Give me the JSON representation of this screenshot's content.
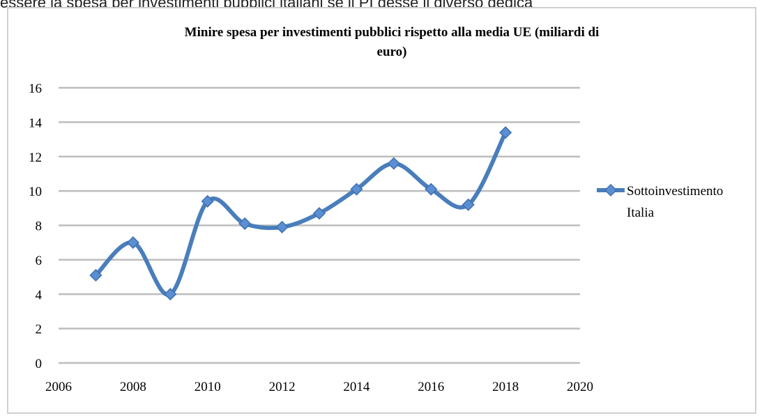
{
  "top_text": "essere la spesa per investimenti pubblici italiani se il PÌ desse il diverso dedica",
  "chart_data": {
    "type": "line",
    "title_line1": "Minire spesa per investimenti pubblici rispetto alla media UE (miliardi di",
    "title_line2": "euro)",
    "xlabel": "",
    "ylabel": "",
    "xlim": [
      2006,
      2020
    ],
    "ylim": [
      0,
      16
    ],
    "x_ticks": [
      "2006",
      "2008",
      "2010",
      "2012",
      "2014",
      "2016",
      "2018",
      "2020"
    ],
    "y_ticks": [
      "0",
      "2",
      "4",
      "6",
      "8",
      "10",
      "12",
      "14",
      "16"
    ],
    "grid": true,
    "legend_position": "right",
    "series": [
      {
        "name_line1": "Sottoinvestimento",
        "name_line2": "Italia",
        "color": "#4a7ebb",
        "x": [
          2007,
          2008,
          2009,
          2010,
          2011,
          2012,
          2013,
          2014,
          2015,
          2016,
          2017,
          2018
        ],
        "y": [
          5.1,
          7.0,
          4.0,
          9.4,
          8.1,
          7.9,
          8.7,
          10.1,
          11.6,
          10.1,
          9.2,
          13.4
        ]
      }
    ]
  }
}
